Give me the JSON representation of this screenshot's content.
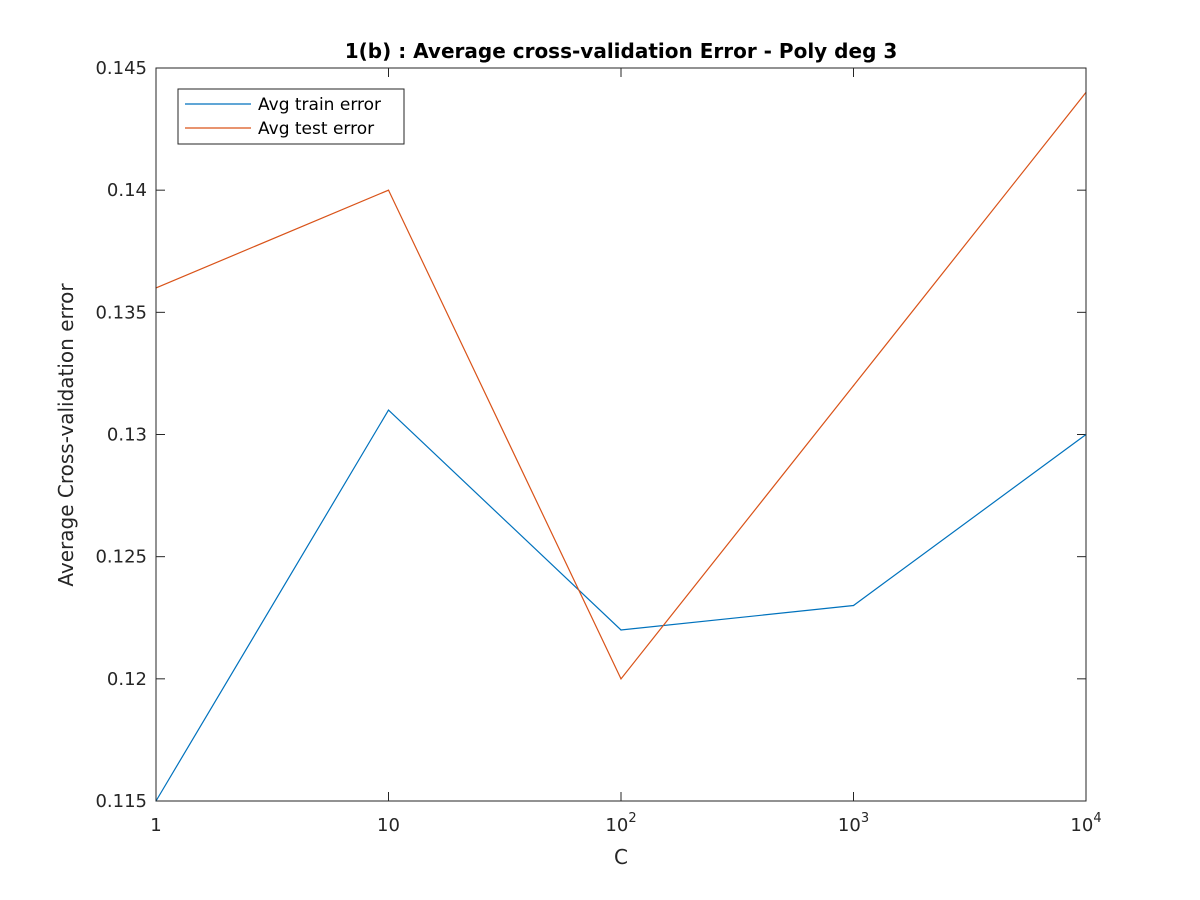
{
  "chart_data": {
    "type": "line",
    "title": "1(b) : Average cross-validation Error - Poly deg 3",
    "xlabel": "C",
    "ylabel": "Average Cross-validation error",
    "xscale": "log",
    "xlim": [
      1,
      10000
    ],
    "ylim": [
      0.115,
      0.145
    ],
    "x": [
      1,
      10,
      100,
      1000,
      10000
    ],
    "xticks": [
      {
        "value": 1,
        "base": "1",
        "exp": ""
      },
      {
        "value": 10,
        "base": "10",
        "exp": ""
      },
      {
        "value": 100,
        "base": "10",
        "exp": "2"
      },
      {
        "value": 1000,
        "base": "10",
        "exp": "3"
      },
      {
        "value": 10000,
        "base": "10",
        "exp": "4"
      }
    ],
    "yticks": [
      {
        "value": 0.115,
        "label": "0.115"
      },
      {
        "value": 0.12,
        "label": "0.12"
      },
      {
        "value": 0.125,
        "label": "0.125"
      },
      {
        "value": 0.13,
        "label": "0.13"
      },
      {
        "value": 0.135,
        "label": "0.135"
      },
      {
        "value": 0.14,
        "label": "0.14"
      },
      {
        "value": 0.145,
        "label": "0.145"
      }
    ],
    "series": [
      {
        "name": "Avg train error",
        "color": "#0072BD",
        "values": [
          0.115,
          0.131,
          0.122,
          0.123,
          0.13
        ]
      },
      {
        "name": "Avg test error",
        "color": "#D95319",
        "values": [
          0.136,
          0.14,
          0.12,
          0.132,
          0.144
        ]
      }
    ],
    "grid": false,
    "legend": "top-left"
  }
}
